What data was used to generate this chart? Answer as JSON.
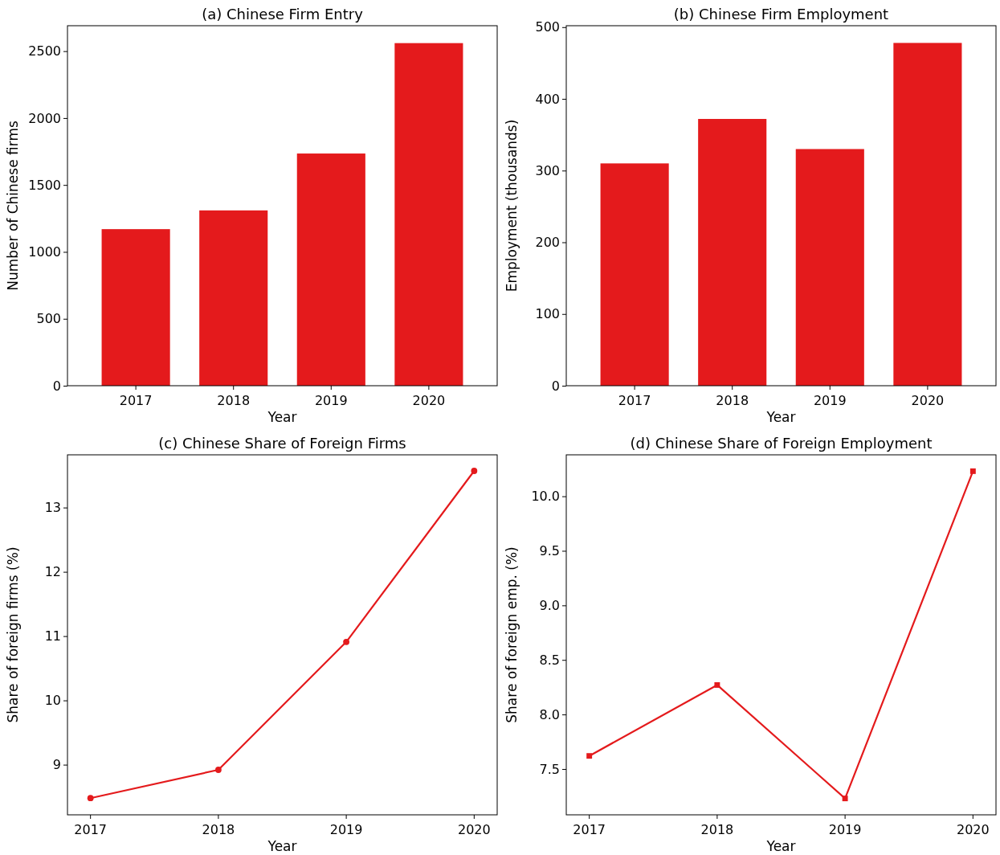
{
  "chart_data": [
    {
      "type": "bar",
      "title": "(a) Chinese Firm Entry",
      "xlabel": "Year",
      "ylabel": "Number of Chinese firms",
      "categories": [
        "2017",
        "2018",
        "2019",
        "2020"
      ],
      "values": [
        1170,
        1310,
        1735,
        2560
      ],
      "color": "#e41a1c",
      "ylim": [
        0,
        2690
      ],
      "yticks": [
        0,
        500,
        1000,
        1500,
        2000,
        2500
      ],
      "grid": false
    },
    {
      "type": "bar",
      "title": "(b) Chinese Firm Employment",
      "xlabel": "Year",
      "ylabel": "Employment (thousands)",
      "categories": [
        "2017",
        "2018",
        "2019",
        "2020"
      ],
      "values": [
        310,
        372,
        330,
        478
      ],
      "color": "#e41a1c",
      "ylim": [
        0,
        502
      ],
      "yticks": [
        0,
        100,
        200,
        300,
        400,
        500
      ],
      "grid": false
    },
    {
      "type": "line",
      "title": "(c) Chinese Share of Foreign Firms",
      "xlabel": "Year",
      "ylabel": "Share of foreign firms (%)",
      "categories": [
        "2017",
        "2018",
        "2019",
        "2020"
      ],
      "values": [
        8.48,
        8.92,
        10.91,
        13.57
      ],
      "color": "#e41a1c",
      "marker": "circle",
      "ylim": [
        8.22,
        13.82
      ],
      "yticks": [
        9,
        10,
        11,
        12,
        13
      ],
      "grid": false
    },
    {
      "type": "line",
      "title": "(d) Chinese Share of Foreign Employment",
      "xlabel": "Year",
      "ylabel": "Share of foreign emp. (%)",
      "categories": [
        "2017",
        "2018",
        "2019",
        "2020"
      ],
      "values": [
        7.62,
        8.27,
        7.23,
        10.23
      ],
      "color": "#e41a1c",
      "marker": "square",
      "ylim": [
        7.08,
        10.38
      ],
      "yticks": [
        {
          "value": 7.5,
          "label": "7.5"
        },
        {
          "value": 8,
          "label": "8.0"
        },
        {
          "value": 8.5,
          "label": "8.5"
        },
        {
          "value": 9,
          "label": "9.0"
        },
        {
          "value": 9.5,
          "label": "9.5"
        },
        {
          "value": 10,
          "label": "10.0"
        }
      ],
      "grid": false
    }
  ]
}
